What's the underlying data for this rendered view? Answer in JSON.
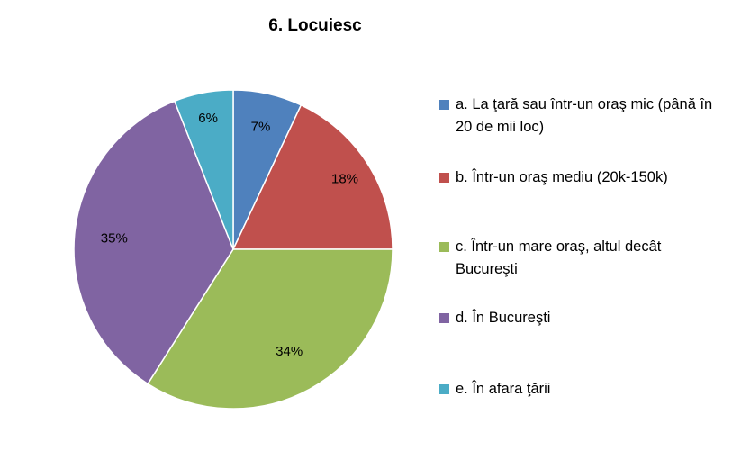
{
  "chart_data": {
    "type": "pie",
    "title": "6. Locuiesc",
    "legend_position": "right",
    "categories": [
      "a. La ţară sau într-un oraş mic (până în 20 de mii loc)",
      "b. Într-un oraş mediu (20k-150k)",
      "c. Într-un mare oraş, altul decât Bucureşti",
      "d. În Bucureşti",
      "e. În afara ţării"
    ],
    "values": [
      7,
      18,
      34,
      35,
      6
    ],
    "labels": [
      "7%",
      "18%",
      "34%",
      "35%",
      "6%"
    ],
    "colors": [
      "#4F81BD",
      "#C0504D",
      "#9BBB59",
      "#8064A2",
      "#4BACC6"
    ]
  }
}
